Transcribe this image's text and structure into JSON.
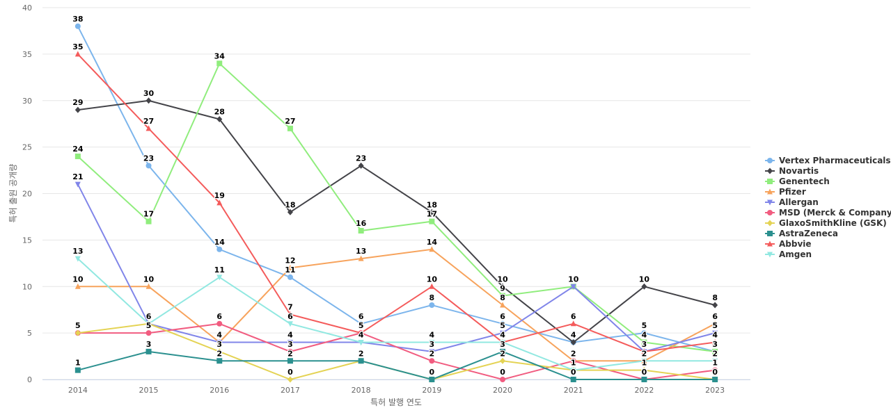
{
  "chart_data": {
    "type": "line",
    "xlabel": "특허 발행 연도",
    "ylabel": "특허 출원 공개량",
    "ylim": [
      0,
      40
    ],
    "yticks": [
      0,
      5,
      10,
      15,
      20,
      25,
      30,
      35,
      40
    ],
    "grid": true,
    "legend_position": "right",
    "data_labels": true,
    "categories": [
      "2014",
      "2015",
      "2016",
      "2017",
      "2018",
      "2019",
      "2020",
      "2021",
      "2022",
      "2023"
    ],
    "series": [
      {
        "name": "Vertex Pharmaceuticals",
        "color": "#7cb5ec",
        "marker": "circle",
        "values": [
          38,
          23,
          14,
          11,
          6,
          8,
          6,
          4,
          5,
          3
        ]
      },
      {
        "name": "Novartis",
        "color": "#434348",
        "marker": "diamond",
        "values": [
          29,
          30,
          28,
          18,
          23,
          18,
          10,
          4,
          10,
          8
        ]
      },
      {
        "name": "Genentech",
        "color": "#90ed7d",
        "marker": "square",
        "values": [
          24,
          17,
          34,
          27,
          16,
          17,
          9,
          10,
          4,
          3
        ]
      },
      {
        "name": "Pfizer",
        "color": "#f7a35c",
        "marker": "triangle",
        "values": [
          10,
          10,
          4,
          12,
          13,
          14,
          8,
          2,
          2,
          6
        ]
      },
      {
        "name": "Allergan",
        "color": "#8085e9",
        "marker": "triangle-down",
        "values": [
          21,
          6,
          4,
          4,
          4,
          3,
          5,
          10,
          3,
          5
        ]
      },
      {
        "name": "MSD (Merck & Company)",
        "color": "#f15c80",
        "marker": "circle",
        "values": [
          5,
          5,
          6,
          3,
          5,
          2,
          0,
          2,
          0,
          1
        ]
      },
      {
        "name": "GlaxoSmithKline (GSK)",
        "color": "#e4d354",
        "marker": "diamond",
        "values": [
          5,
          6,
          3,
          0,
          2,
          0,
          2,
          1,
          1,
          0
        ]
      },
      {
        "name": "AstraZeneca",
        "color": "#2b908f",
        "marker": "square",
        "values": [
          1,
          3,
          2,
          2,
          2,
          0,
          3,
          0,
          0,
          0
        ]
      },
      {
        "name": "Abbvie",
        "color": "#f45b5b",
        "marker": "triangle",
        "values": [
          35,
          27,
          19,
          7,
          5,
          10,
          4,
          6,
          3,
          4
        ]
      },
      {
        "name": "Amgen",
        "color": "#91e8e1",
        "marker": "triangle-down",
        "values": [
          13,
          6,
          11,
          6,
          4,
          4,
          4,
          1,
          2,
          2
        ]
      }
    ]
  }
}
